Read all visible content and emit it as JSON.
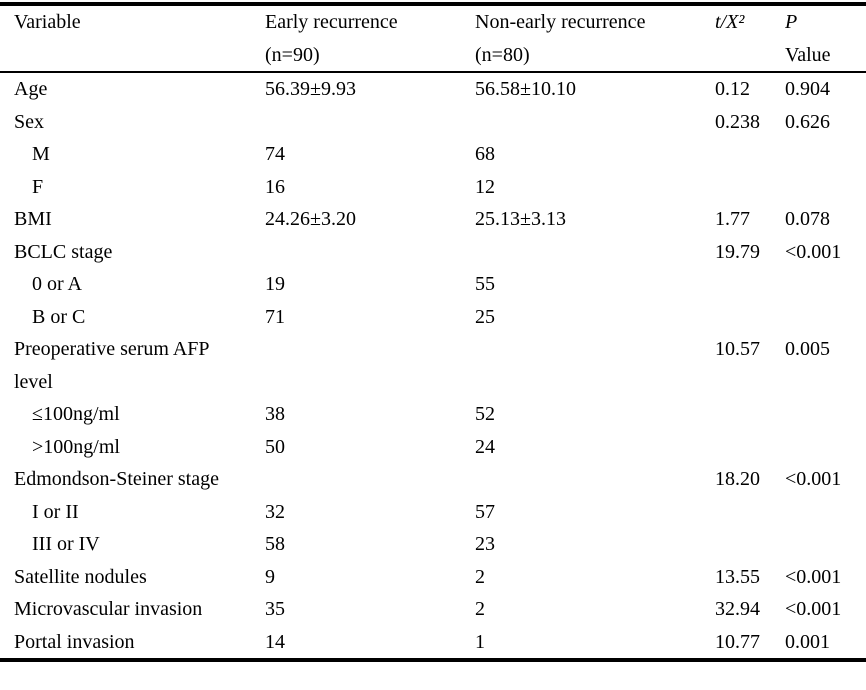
{
  "meta": {
    "background_color": "#ffffff",
    "text_color": "#000000",
    "border_color": "#000000"
  },
  "table": {
    "header": {
      "variable": {
        "line1": "Variable"
      },
      "early": {
        "line1": "Early recurrence",
        "line2": "(n=90)"
      },
      "nonearly": {
        "line1": "Non-early recurrence",
        "line2": "(n=80)"
      },
      "stat": {
        "line1": "t/X²"
      },
      "p": {
        "line1": "P",
        "line2": "Value"
      }
    },
    "rows": [
      {
        "variable": "Age",
        "early": "56.39±9.93",
        "nonearly": "56.58±10.10",
        "stat": "0.12",
        "p": "0.904"
      },
      {
        "variable": "Sex",
        "early": "",
        "nonearly": "",
        "stat": "0.238",
        "p": "0.626"
      },
      {
        "variable": "M",
        "early": "74",
        "nonearly": "68",
        "stat": "",
        "p": ""
      },
      {
        "variable": "F",
        "early": "16",
        "nonearly": "12",
        "stat": "",
        "p": ""
      },
      {
        "variable": "BMI",
        "early": "24.26±3.20",
        "nonearly": "25.13±3.13",
        "stat": "1.77",
        "p": "0.078"
      },
      {
        "variable": "BCLC stage",
        "early": "",
        "nonearly": "",
        "stat": "19.79",
        "p": "<0.001"
      },
      {
        "variable": "0 or A",
        "early": "19",
        "nonearly": "55",
        "stat": "",
        "p": ""
      },
      {
        "variable": "B or C",
        "early": "71",
        "nonearly": "25",
        "stat": "",
        "p": ""
      },
      {
        "variable": "Preoperative serum AFP level",
        "early": "",
        "nonearly": "",
        "stat": "10.57",
        "p": "0.005"
      },
      {
        "variable": "≤100ng/ml",
        "early": "38",
        "nonearly": "52",
        "stat": "",
        "p": ""
      },
      {
        "variable": ">100ng/ml",
        "early": "50",
        "nonearly": "24",
        "stat": "",
        "p": ""
      },
      {
        "variable": "Edmondson-Steiner stage",
        "early": "",
        "nonearly": "",
        "stat": "18.20",
        "p": "<0.001"
      },
      {
        "variable": "I or II",
        "early": "32",
        "nonearly": "57",
        "stat": "",
        "p": ""
      },
      {
        "variable": "III or IV",
        "early": "58",
        "nonearly": "23",
        "stat": "",
        "p": ""
      },
      {
        "variable": "Satellite nodules",
        "early": "9",
        "nonearly": "2",
        "stat": "13.55",
        "p": "<0.001"
      },
      {
        "variable": "Microvascular invasion",
        "early": "35",
        "nonearly": "2",
        "stat": "32.94",
        "p": "<0.001"
      },
      {
        "variable": "Portal invasion",
        "early": "14",
        "nonearly": "1",
        "stat": "10.77",
        "p": "0.001"
      }
    ]
  }
}
